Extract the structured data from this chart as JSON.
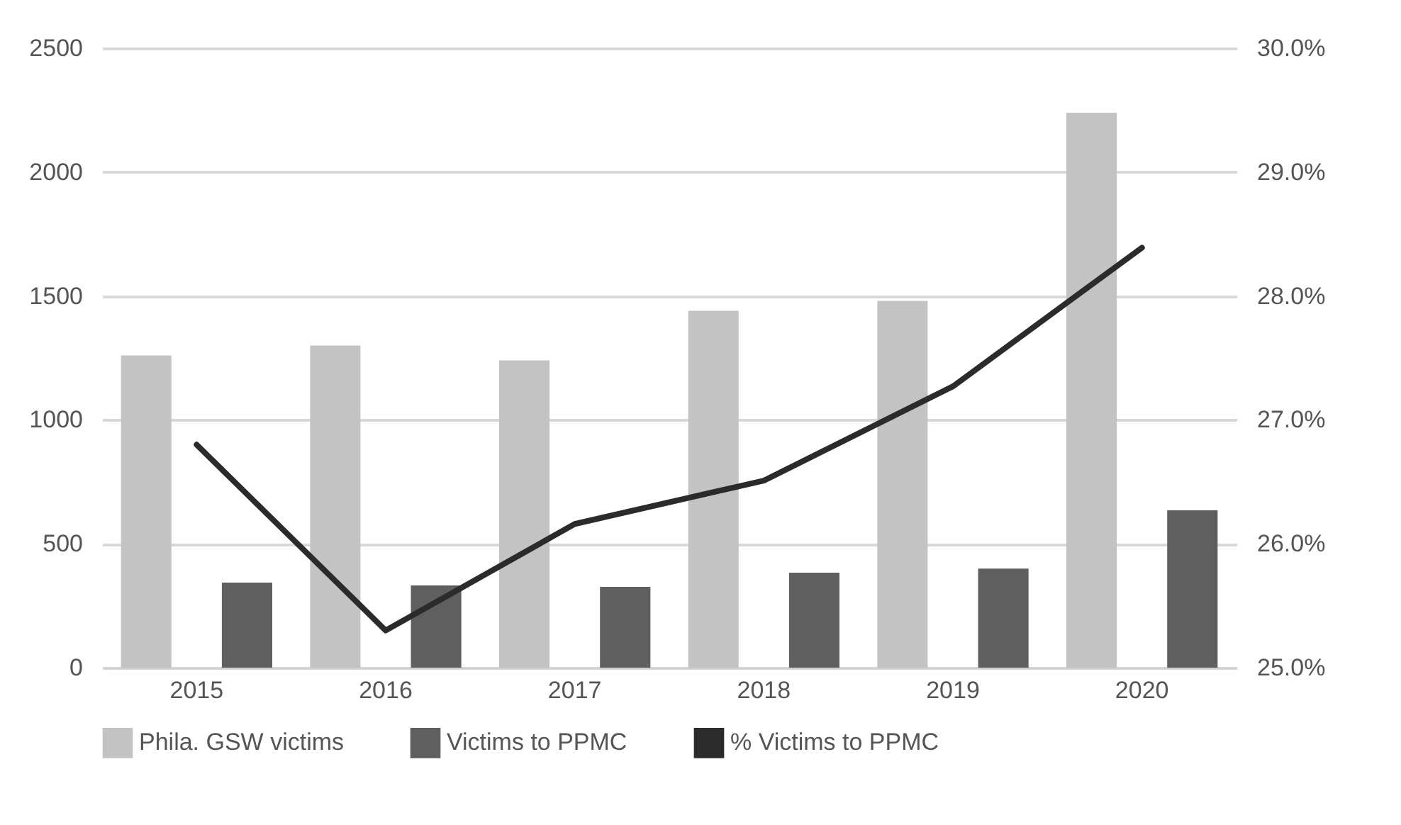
{
  "chart_data": {
    "type": "bar",
    "categories": [
      "2015",
      "2016",
      "2017",
      "2018",
      "2019",
      "2020"
    ],
    "series": [
      {
        "name": "Phila. GSW victims",
        "color": "#c3c3c3",
        "values": [
          1260,
          1300,
          1240,
          1440,
          1480,
          2240
        ]
      },
      {
        "name": "Victims to PPMC",
        "color": "#5f5f5f",
        "values": [
          343,
          332,
          326,
          383,
          400,
          635
        ]
      },
      {
        "name": "% Victims to PPMC",
        "type": "line",
        "axis": "y2",
        "color": "#2b2b2b",
        "values": [
          26.8,
          25.3,
          26.16,
          26.51,
          27.27,
          28.39
        ]
      }
    ],
    "ylim": [
      0,
      2500
    ],
    "yticks": [
      0,
      500,
      1000,
      1500,
      2000,
      2500
    ],
    "y2lim": [
      25,
      30
    ],
    "y2ticks": [
      {
        "value": 25,
        "label": "25.0%"
      },
      {
        "value": 26,
        "label": "26.0%"
      },
      {
        "value": 27,
        "label": "27.0%"
      },
      {
        "value": 28,
        "label": "28.0%"
      },
      {
        "value": 29,
        "label": "29.0%"
      },
      {
        "value": 30,
        "label": "30.0%"
      }
    ],
    "grid": "y",
    "legend": "bottom"
  }
}
